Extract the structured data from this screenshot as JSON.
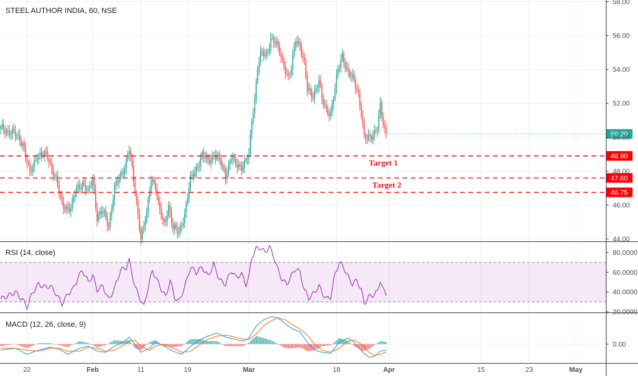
{
  "chart_data": {
    "type": "candlestick",
    "title": "STEEL AUTHOR INDIA, 60, NSE",
    "price_axis": {
      "ticks": [
        "58.00",
        "56.00",
        "54.00",
        "52.00",
        "50.00",
        "48.00",
        "46.00",
        "44.00"
      ],
      "tick_values": [
        58,
        56,
        54,
        52,
        50,
        48,
        46,
        44
      ],
      "ylim": [
        43.9,
        58.1
      ]
    },
    "time_axis": {
      "labels": [
        "22",
        "Feb",
        "11",
        "19",
        "Mar",
        "18",
        "Apr",
        "15",
        "23",
        "May"
      ],
      "bold": [
        false,
        true,
        false,
        false,
        true,
        false,
        true,
        false,
        false,
        true
      ],
      "bar_index": [
        18,
        63,
        96,
        128,
        170,
        230,
        266,
        329,
        362,
        394
      ],
      "total_bars": 415
    },
    "last_price": {
      "label": "50.20",
      "value": 50.2,
      "color": "#26a69a"
    },
    "levels": [
      {
        "label": "48.90",
        "value": 48.9,
        "name": "Target 1",
        "color": "#ff0000"
      },
      {
        "label": "47.60",
        "value": 47.6,
        "name": "Target 2",
        "color": "#ff0000"
      },
      {
        "label": "46.75",
        "value": 46.75,
        "name": "",
        "color": "#ff0000"
      }
    ],
    "price_path": [
      [
        0,
        50.5
      ],
      [
        8,
        50.3
      ],
      [
        15,
        49.7
      ],
      [
        20,
        47.8
      ],
      [
        25,
        49.0
      ],
      [
        32,
        48.9
      ],
      [
        38,
        47.5
      ],
      [
        42,
        46.0
      ],
      [
        48,
        45.8
      ],
      [
        52,
        47.0
      ],
      [
        56,
        47.3
      ],
      [
        60,
        46.7
      ],
      [
        63,
        47.6
      ],
      [
        66,
        45.3
      ],
      [
        70,
        45.6
      ],
      [
        74,
        44.8
      ],
      [
        78,
        47.0
      ],
      [
        82,
        47.7
      ],
      [
        85,
        48.3
      ],
      [
        88,
        49.3
      ],
      [
        92,
        46.8
      ],
      [
        94,
        45.5
      ],
      [
        96,
        44.1
      ],
      [
        100,
        45.4
      ],
      [
        103,
        47.6
      ],
      [
        106,
        47.2
      ],
      [
        108,
        46.0
      ],
      [
        110,
        45.3
      ],
      [
        112,
        44.8
      ],
      [
        115,
        46.0
      ],
      [
        118,
        44.6
      ],
      [
        122,
        44.4
      ],
      [
        126,
        45.5
      ],
      [
        130,
        47.5
      ],
      [
        134,
        48.2
      ],
      [
        138,
        48.9
      ],
      [
        142,
        48.6
      ],
      [
        146,
        49.0
      ],
      [
        150,
        48.6
      ],
      [
        154,
        47.8
      ],
      [
        158,
        48.8
      ],
      [
        161,
        48.4
      ],
      [
        165,
        48.3
      ],
      [
        168,
        48.6
      ],
      [
        170,
        48.9
      ],
      [
        172,
        51.0
      ],
      [
        174,
        52.3
      ],
      [
        176,
        54.2
      ],
      [
        178,
        54.9
      ],
      [
        182,
        54.8
      ],
      [
        185,
        55.9
      ],
      [
        188,
        55.6
      ],
      [
        191,
        55.0
      ],
      [
        194,
        54.3
      ],
      [
        197,
        53.5
      ],
      [
        199,
        54.0
      ],
      [
        202,
        55.8
      ],
      [
        205,
        55.5
      ],
      [
        208,
        54.3
      ],
      [
        210,
        52.8
      ],
      [
        214,
        52.5
      ],
      [
        218,
        53.3
      ],
      [
        220,
        52.2
      ],
      [
        223,
        51.7
      ],
      [
        226,
        51.4
      ],
      [
        229,
        52.8
      ],
      [
        231,
        54.0
      ],
      [
        234,
        54.9
      ],
      [
        238,
        53.7
      ],
      [
        242,
        53.4
      ],
      [
        245,
        52.6
      ],
      [
        247,
        51.4
      ],
      [
        249,
        49.9
      ],
      [
        252,
        50.0
      ],
      [
        256,
        50.3
      ],
      [
        258,
        50.5
      ],
      [
        260,
        51.8
      ],
      [
        262,
        50.8
      ],
      [
        264,
        50.2
      ]
    ],
    "rsi": {
      "name": "RSI (14, close)",
      "ticks": [
        "80.0000",
        "60.0000",
        "40.0000",
        "20.0000"
      ],
      "tick_values": [
        80,
        60,
        40,
        20
      ],
      "ylim": [
        20,
        90
      ],
      "band": [
        30,
        70
      ],
      "line_color": "#9c27b0",
      "path": [
        [
          0,
          33
        ],
        [
          5,
          36
        ],
        [
          10,
          40
        ],
        [
          15,
          32
        ],
        [
          18,
          25
        ],
        [
          22,
          40
        ],
        [
          26,
          48
        ],
        [
          30,
          45
        ],
        [
          34,
          46
        ],
        [
          38,
          38
        ],
        [
          42,
          28
        ],
        [
          46,
          38
        ],
        [
          50,
          44
        ],
        [
          53,
          55
        ],
        [
          56,
          62
        ],
        [
          60,
          50
        ],
        [
          63,
          57
        ],
        [
          66,
          42
        ],
        [
          70,
          46
        ],
        [
          74,
          32
        ],
        [
          78,
          44
        ],
        [
          82,
          62
        ],
        [
          86,
          65
        ],
        [
          88,
          72
        ],
        [
          92,
          45
        ],
        [
          95,
          35
        ],
        [
          98,
          25
        ],
        [
          101,
          45
        ],
        [
          104,
          62
        ],
        [
          107,
          52
        ],
        [
          110,
          43
        ],
        [
          113,
          35
        ],
        [
          116,
          52
        ],
        [
          119,
          35
        ],
        [
          122,
          30
        ],
        [
          126,
          45
        ],
        [
          130,
          65
        ],
        [
          134,
          60
        ],
        [
          138,
          65
        ],
        [
          142,
          56
        ],
        [
          146,
          68
        ],
        [
          150,
          52
        ],
        [
          154,
          48
        ],
        [
          158,
          62
        ],
        [
          161,
          55
        ],
        [
          165,
          58
        ],
        [
          168,
          48
        ],
        [
          170,
          55
        ],
        [
          172,
          75
        ],
        [
          175,
          84
        ],
        [
          178,
          85
        ],
        [
          181,
          80
        ],
        [
          184,
          86
        ],
        [
          187,
          76
        ],
        [
          190,
          62
        ],
        [
          193,
          52
        ],
        [
          196,
          48
        ],
        [
          199,
          56
        ],
        [
          202,
          64
        ],
        [
          205,
          60
        ],
        [
          208,
          42
        ],
        [
          211,
          34
        ],
        [
          214,
          38
        ],
        [
          218,
          46
        ],
        [
          220,
          40
        ],
        [
          223,
          33
        ],
        [
          226,
          35
        ],
        [
          229,
          58
        ],
        [
          232,
          70
        ],
        [
          235,
          65
        ],
        [
          238,
          55
        ],
        [
          241,
          48
        ],
        [
          244,
          52
        ],
        [
          247,
          42
        ],
        [
          249,
          28
        ],
        [
          252,
          35
        ],
        [
          255,
          37
        ],
        [
          258,
          40
        ],
        [
          260,
          52
        ],
        [
          262,
          42
        ],
        [
          264,
          38
        ]
      ]
    },
    "macd": {
      "name": "MACD (12, 26, close, 9)",
      "ticks": [
        "0.00"
      ],
      "tick_values": [
        0
      ],
      "ylim": [
        -0.9,
        1.5
      ],
      "macd_color": "#2196f3",
      "signal_color": "#ff6d00",
      "hist_pos_color": "#26a69a",
      "hist_neg_color": "#ef5350",
      "macd_path": [
        [
          0,
          -0.3
        ],
        [
          10,
          -0.2
        ],
        [
          18,
          -0.5
        ],
        [
          26,
          -0.3
        ],
        [
          34,
          -0.15
        ],
        [
          40,
          -0.25
        ],
        [
          46,
          -0.5
        ],
        [
          54,
          -0.2
        ],
        [
          60,
          -0.1
        ],
        [
          66,
          -0.35
        ],
        [
          72,
          -0.4
        ],
        [
          78,
          -0.1
        ],
        [
          84,
          0.1
        ],
        [
          88,
          0.35
        ],
        [
          92,
          0.0
        ],
        [
          96,
          -0.4
        ],
        [
          102,
          -0.2
        ],
        [
          106,
          0.1
        ],
        [
          112,
          -0.1
        ],
        [
          118,
          -0.35
        ],
        [
          124,
          -0.5
        ],
        [
          130,
          -0.1
        ],
        [
          136,
          0.2
        ],
        [
          142,
          0.4
        ],
        [
          148,
          0.55
        ],
        [
          154,
          0.35
        ],
        [
          160,
          0.25
        ],
        [
          166,
          0.15
        ],
        [
          170,
          0.3
        ],
        [
          175,
          0.9
        ],
        [
          180,
          1.2
        ],
        [
          185,
          1.35
        ],
        [
          190,
          1.3
        ],
        [
          195,
          1.0
        ],
        [
          200,
          0.75
        ],
        [
          205,
          0.6
        ],
        [
          210,
          0.1
        ],
        [
          215,
          -0.3
        ],
        [
          220,
          -0.4
        ],
        [
          226,
          -0.45
        ],
        [
          232,
          0.1
        ],
        [
          238,
          0.3
        ],
        [
          242,
          0.1
        ],
        [
          248,
          -0.4
        ],
        [
          252,
          -0.65
        ],
        [
          256,
          -0.6
        ],
        [
          260,
          -0.35
        ],
        [
          264,
          -0.3
        ]
      ],
      "signal_path": [
        [
          0,
          -0.2
        ],
        [
          10,
          -0.2
        ],
        [
          18,
          -0.3
        ],
        [
          26,
          -0.35
        ],
        [
          34,
          -0.2
        ],
        [
          40,
          -0.2
        ],
        [
          46,
          -0.35
        ],
        [
          54,
          -0.35
        ],
        [
          60,
          -0.15
        ],
        [
          66,
          -0.2
        ],
        [
          72,
          -0.35
        ],
        [
          78,
          -0.3
        ],
        [
          84,
          -0.05
        ],
        [
          88,
          0.15
        ],
        [
          92,
          0.2
        ],
        [
          96,
          -0.1
        ],
        [
          102,
          -0.3
        ],
        [
          106,
          -0.1
        ],
        [
          112,
          0.0
        ],
        [
          118,
          -0.2
        ],
        [
          124,
          -0.4
        ],
        [
          130,
          -0.35
        ],
        [
          136,
          -0.05
        ],
        [
          142,
          0.25
        ],
        [
          148,
          0.4
        ],
        [
          154,
          0.45
        ],
        [
          160,
          0.35
        ],
        [
          166,
          0.25
        ],
        [
          170,
          0.22
        ],
        [
          175,
          0.5
        ],
        [
          180,
          0.9
        ],
        [
          185,
          1.15
        ],
        [
          190,
          1.3
        ],
        [
          195,
          1.2
        ],
        [
          200,
          0.95
        ],
        [
          205,
          0.75
        ],
        [
          210,
          0.45
        ],
        [
          215,
          0.0
        ],
        [
          220,
          -0.3
        ],
        [
          226,
          -0.4
        ],
        [
          232,
          -0.2
        ],
        [
          238,
          0.15
        ],
        [
          242,
          0.2
        ],
        [
          248,
          -0.05
        ],
        [
          252,
          -0.4
        ],
        [
          256,
          -0.55
        ],
        [
          260,
          -0.5
        ],
        [
          264,
          -0.4
        ]
      ]
    }
  }
}
